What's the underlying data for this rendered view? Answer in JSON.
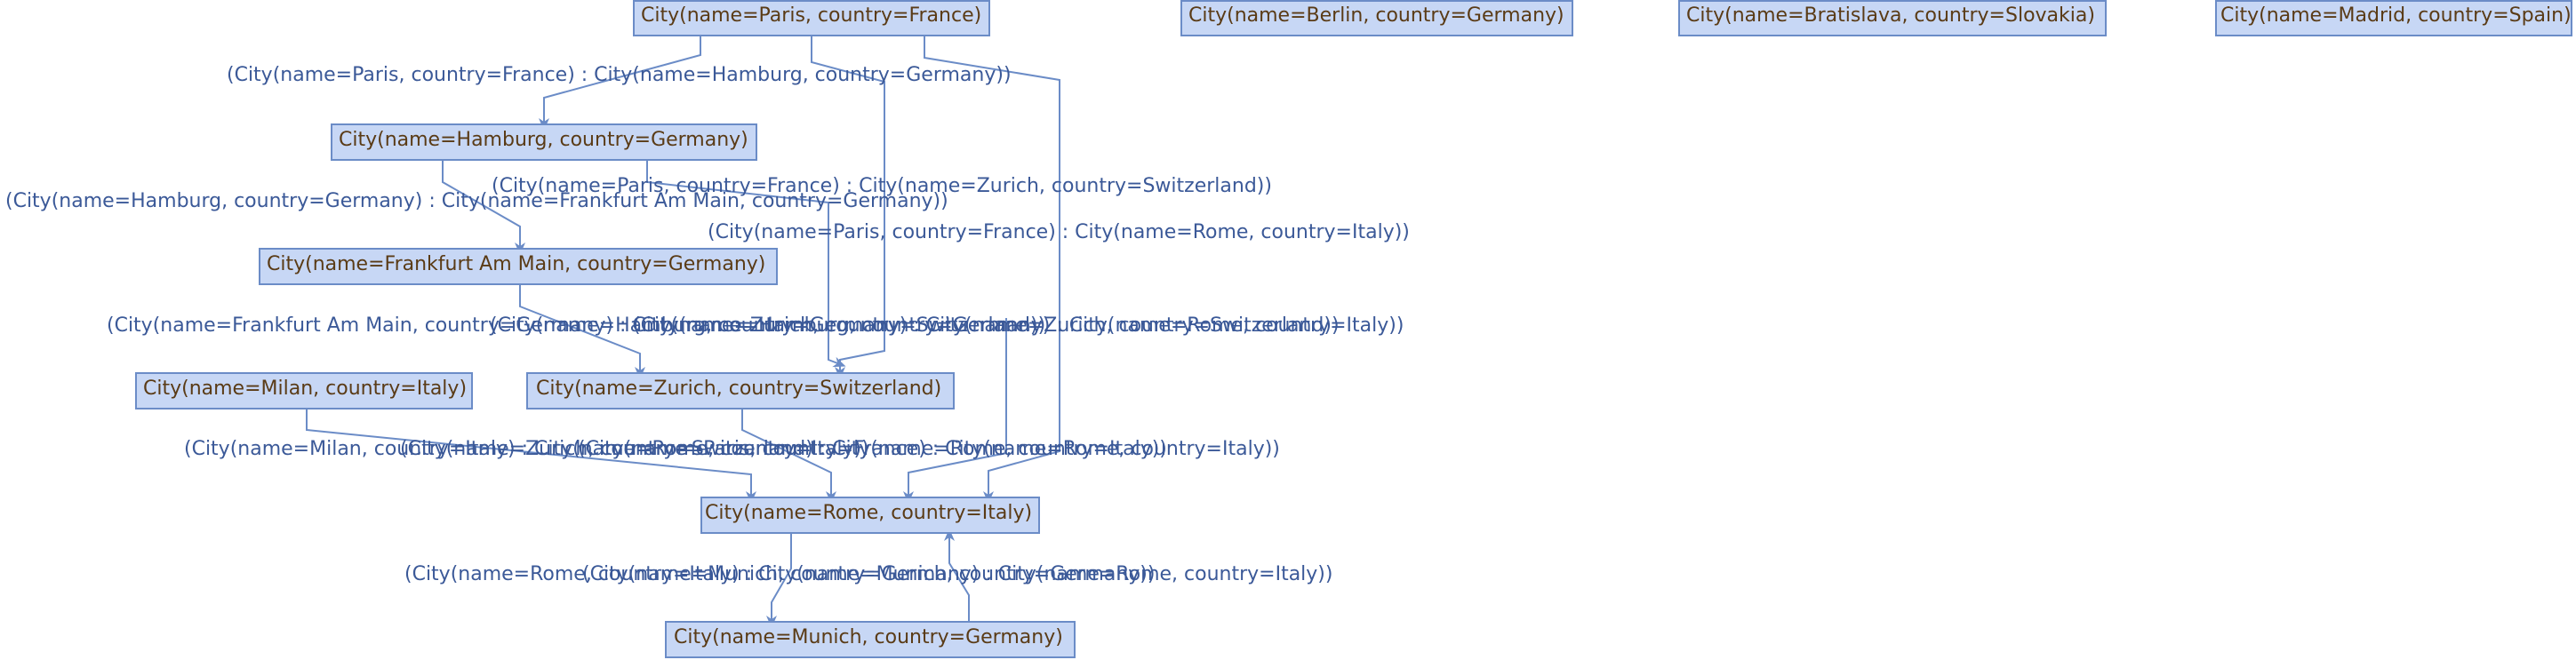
{
  "colors": {
    "node_fill": "#c7d7f5",
    "node_stroke": "#6b8cc7",
    "node_text": "#5a3b16",
    "edge": "#6b8cc7",
    "edge_text": "#3b5998"
  },
  "nodes": [
    {
      "id": "paris",
      "label": "City(name=Paris, country=France)"
    },
    {
      "id": "berlin",
      "label": "City(name=Berlin, country=Germany)"
    },
    {
      "id": "bratislava",
      "label": "City(name=Bratislava, country=Slovakia)"
    },
    {
      "id": "madrid",
      "label": "City(name=Madrid, country=Spain)"
    },
    {
      "id": "hamburg",
      "label": "City(name=Hamburg, country=Germany)"
    },
    {
      "id": "frankfurt",
      "label": "City(name=Frankfurt Am Main, country=Germany)"
    },
    {
      "id": "milan",
      "label": "City(name=Milan, country=Italy)"
    },
    {
      "id": "zurich",
      "label": "City(name=Zurich, country=Switzerland)"
    },
    {
      "id": "rome",
      "label": "City(name=Rome, country=Italy)"
    },
    {
      "id": "munich",
      "label": "City(name=Munich, country=Germany)"
    }
  ],
  "edges": [
    {
      "id": "paris-hamburg",
      "label": "(City(name=Paris, country=France) : City(name=Hamburg, country=Germany))"
    },
    {
      "id": "paris-zurich",
      "label": "(City(name=Paris, country=France) : City(name=Zurich, country=Switzerland))"
    },
    {
      "id": "hamburg-frankfurt",
      "label": "(City(name=Hamburg, country=Germany) : City(name=Frankfurt Am Main, country=Germany))"
    },
    {
      "id": "paris-rome",
      "label": "(City(name=Paris, country=France) : City(name=Rome, country=Italy))"
    },
    {
      "id": "frankfurt-zurich",
      "label": "(City(name=Frankfurt Am Main, country=Germany) : City(name=Zurich, country=Switzerland))"
    },
    {
      "id": "hamburg-zurich",
      "label": "(City(name=Hamburg, country=Germany) : City(name=Zurich, country=Switzerland))"
    },
    {
      "id": "hamburg-rome",
      "label": "(City(name=Hamburg, country=Germany) : City(name=Rome, country=Italy))"
    },
    {
      "id": "milan-rome",
      "label": "(City(name=Milan, country=Italy) : City(name=Rome, country=Italy))"
    },
    {
      "id": "zurich-rome",
      "label": "(City(name=Zurich, country=Switzerland) : City(name=Rome, country=Italy))"
    },
    {
      "id": "paris-rome-2",
      "label": "(City(name=Paris, country=France) : City(name=Rome, country=Italy))"
    },
    {
      "id": "rome-munich",
      "label": "(City(name=Rome, country=Italy) : City(name=Munich, country=Germany))"
    },
    {
      "id": "munich-rome",
      "label": "(City(name=Munich, country=Germany) : City(name=Rome, country=Italy))"
    }
  ]
}
